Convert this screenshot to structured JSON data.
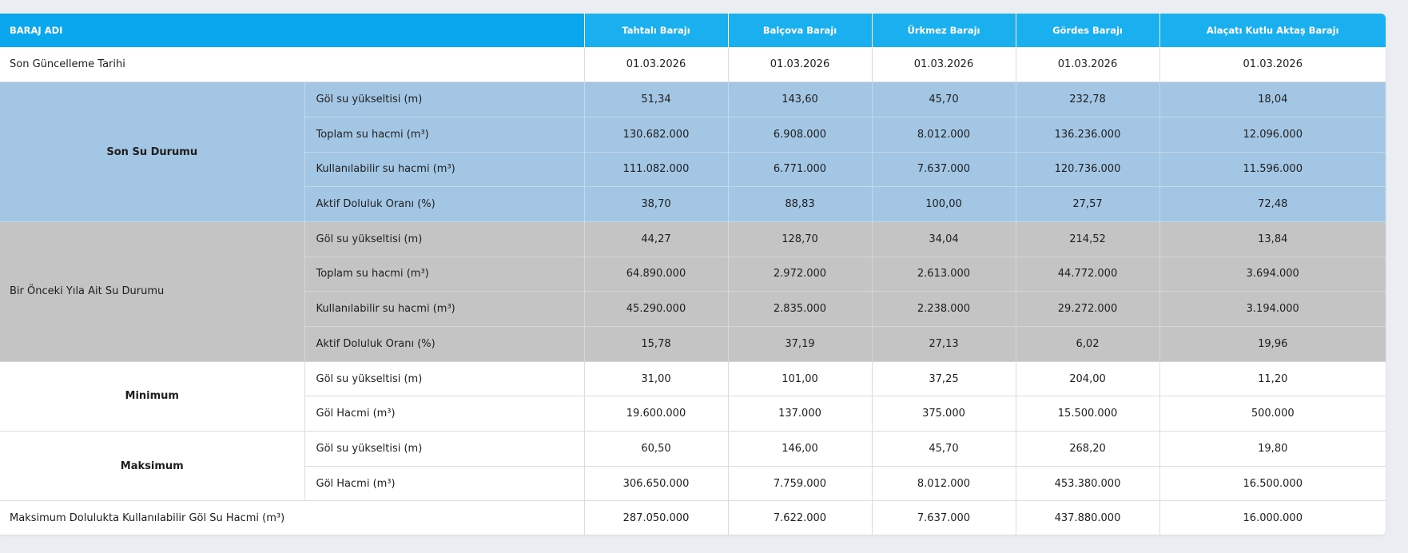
{
  "header": {
    "first": "BARAJ ADI",
    "dams": [
      "Tahtalı Barajı",
      "Balçova Barajı",
      "Ürkmez Barajı",
      "Gördes Barajı",
      "Alaçatı Kutlu Aktaş Barajı"
    ]
  },
  "update": {
    "label": "Son Güncelleme Tarihi",
    "values": [
      "01.03.2026",
      "01.03.2026",
      "01.03.2026",
      "01.03.2026",
      "01.03.2026"
    ]
  },
  "current": {
    "label": "Son Su Durumu",
    "rows": [
      {
        "label": "Göl su yükseltisi (m)",
        "values": [
          "51,34",
          "143,60",
          "45,70",
          "232,78",
          "18,04"
        ]
      },
      {
        "label": "Toplam su hacmi (m³)",
        "values": [
          "130.682.000",
          "6.908.000",
          "8.012.000",
          "136.236.000",
          "12.096.000"
        ]
      },
      {
        "label": "Kullanılabilir su hacmi (m³)",
        "values": [
          "111.082.000",
          "6.771.000",
          "7.637.000",
          "120.736.000",
          "11.596.000"
        ]
      },
      {
        "label": "Aktif Doluluk Oranı (%)",
        "values": [
          "38,70",
          "88,83",
          "100,00",
          "27,57",
          "72,48"
        ]
      }
    ]
  },
  "previous": {
    "label": "Bir Önceki Yıla Ait Su Durumu",
    "rows": [
      {
        "label": "Göl su yükseltisi (m)",
        "values": [
          "44,27",
          "128,70",
          "34,04",
          "214,52",
          "13,84"
        ]
      },
      {
        "label": "Toplam su hacmi (m³)",
        "values": [
          "64.890.000",
          "2.972.000",
          "2.613.000",
          "44.772.000",
          "3.694.000"
        ]
      },
      {
        "label": "Kullanılabilir su hacmi (m³)",
        "values": [
          "45.290.000",
          "2.835.000",
          "2.238.000",
          "29.272.000",
          "3.194.000"
        ]
      },
      {
        "label": "Aktif Doluluk Oranı (%)",
        "values": [
          "15,78",
          "37,19",
          "27,13",
          "6,02",
          "19,96"
        ]
      }
    ]
  },
  "minimum": {
    "label": "Minimum",
    "rows": [
      {
        "label": "Göl su yükseltisi (m)",
        "values": [
          "31,00",
          "101,00",
          "37,25",
          "204,00",
          "11,20"
        ]
      },
      {
        "label": "Göl Hacmi (m³)",
        "values": [
          "19.600.000",
          "137.000",
          "375.000",
          "15.500.000",
          "500.000"
        ]
      }
    ]
  },
  "maximum": {
    "label": "Maksimum",
    "rows": [
      {
        "label": "Göl su yükseltisi (m)",
        "values": [
          "60,50",
          "146,00",
          "45,70",
          "268,20",
          "19,80"
        ]
      },
      {
        "label": "Göl Hacmi (m³)",
        "values": [
          "306.650.000",
          "7.759.000",
          "8.012.000",
          "453.380.000",
          "16.500.000"
        ]
      }
    ]
  },
  "max_usable": {
    "label": "Maksimum Dolulukta Kullanılabilir Göl Su Hacmi (m³)",
    "values": [
      "287.050.000",
      "7.622.000",
      "7.637.000",
      "437.880.000",
      "16.000.000"
    ]
  },
  "colors": {
    "header_blue": "#1ab0f0",
    "current_bg": "#a3c6e4",
    "previous_bg": "#c4c4c4"
  }
}
